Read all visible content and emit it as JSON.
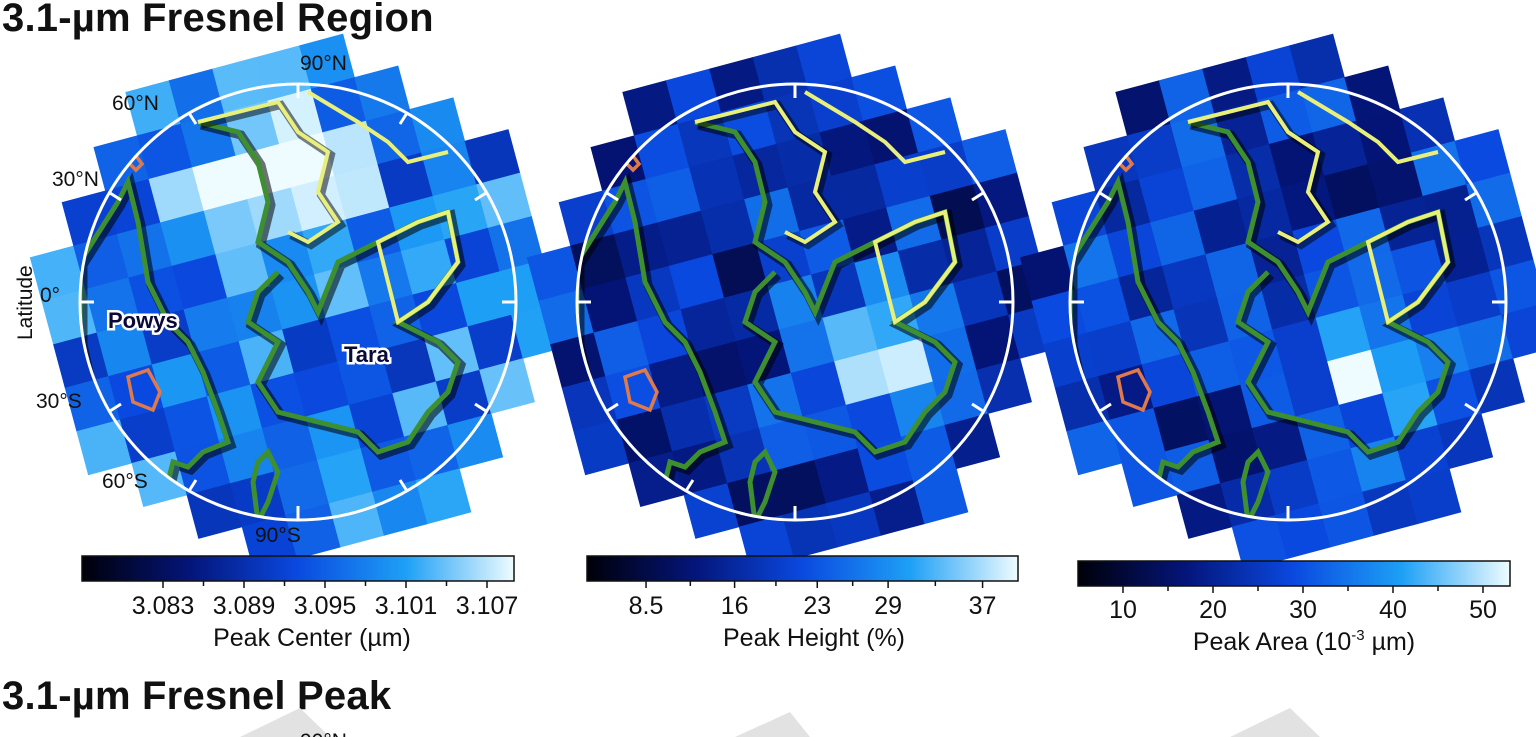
{
  "sections": [
    {
      "title": "3.1-µm Fresnel Region"
    },
    {
      "title": "3.1-µm Fresnel Peak"
    }
  ],
  "colors": {
    "dark": "#000014",
    "mid": "#0f5be8",
    "light": "#e8fbff",
    "limb": "#ffffff",
    "region": "#3d8f2f",
    "yellow": "#e8ef7a",
    "orange": "#e07a4a"
  },
  "map_labels": {
    "ylabel": "Latitude",
    "lat_ticks": [
      "60°N",
      "30°N",
      "0°",
      "30°S",
      "60°S"
    ],
    "pole_n": "90°N",
    "pole_s": "90°S",
    "regions": [
      "Powys",
      "Tara"
    ]
  },
  "chart_data": [
    {
      "type": "heatmap",
      "panel": 1,
      "colorbar_label": "Peak Center (µm)",
      "ticks": [
        "3.083",
        "3.089",
        "3.095",
        "3.101",
        "3.107"
      ],
      "tick_values": [
        3.083,
        3.089,
        3.095,
        3.101,
        3.107
      ],
      "range": [
        3.077,
        3.109
      ]
    },
    {
      "type": "heatmap",
      "panel": 2,
      "colorbar_label": "Peak Height (%)",
      "ticks": [
        "8.5",
        "16",
        "23",
        "29",
        "37"
      ],
      "tick_values": [
        8.5,
        16,
        23,
        29,
        37
      ],
      "range": [
        3.5,
        40
      ]
    },
    {
      "type": "heatmap",
      "panel": 3,
      "colorbar_label_main": "Peak Area (10",
      "colorbar_label_exp": "-3",
      "colorbar_label_tail": " µm)",
      "ticks": [
        "10",
        "20",
        "30",
        "40",
        "50"
      ],
      "tick_values": [
        10,
        20,
        30,
        40,
        50
      ],
      "range": [
        5,
        53
      ]
    }
  ]
}
